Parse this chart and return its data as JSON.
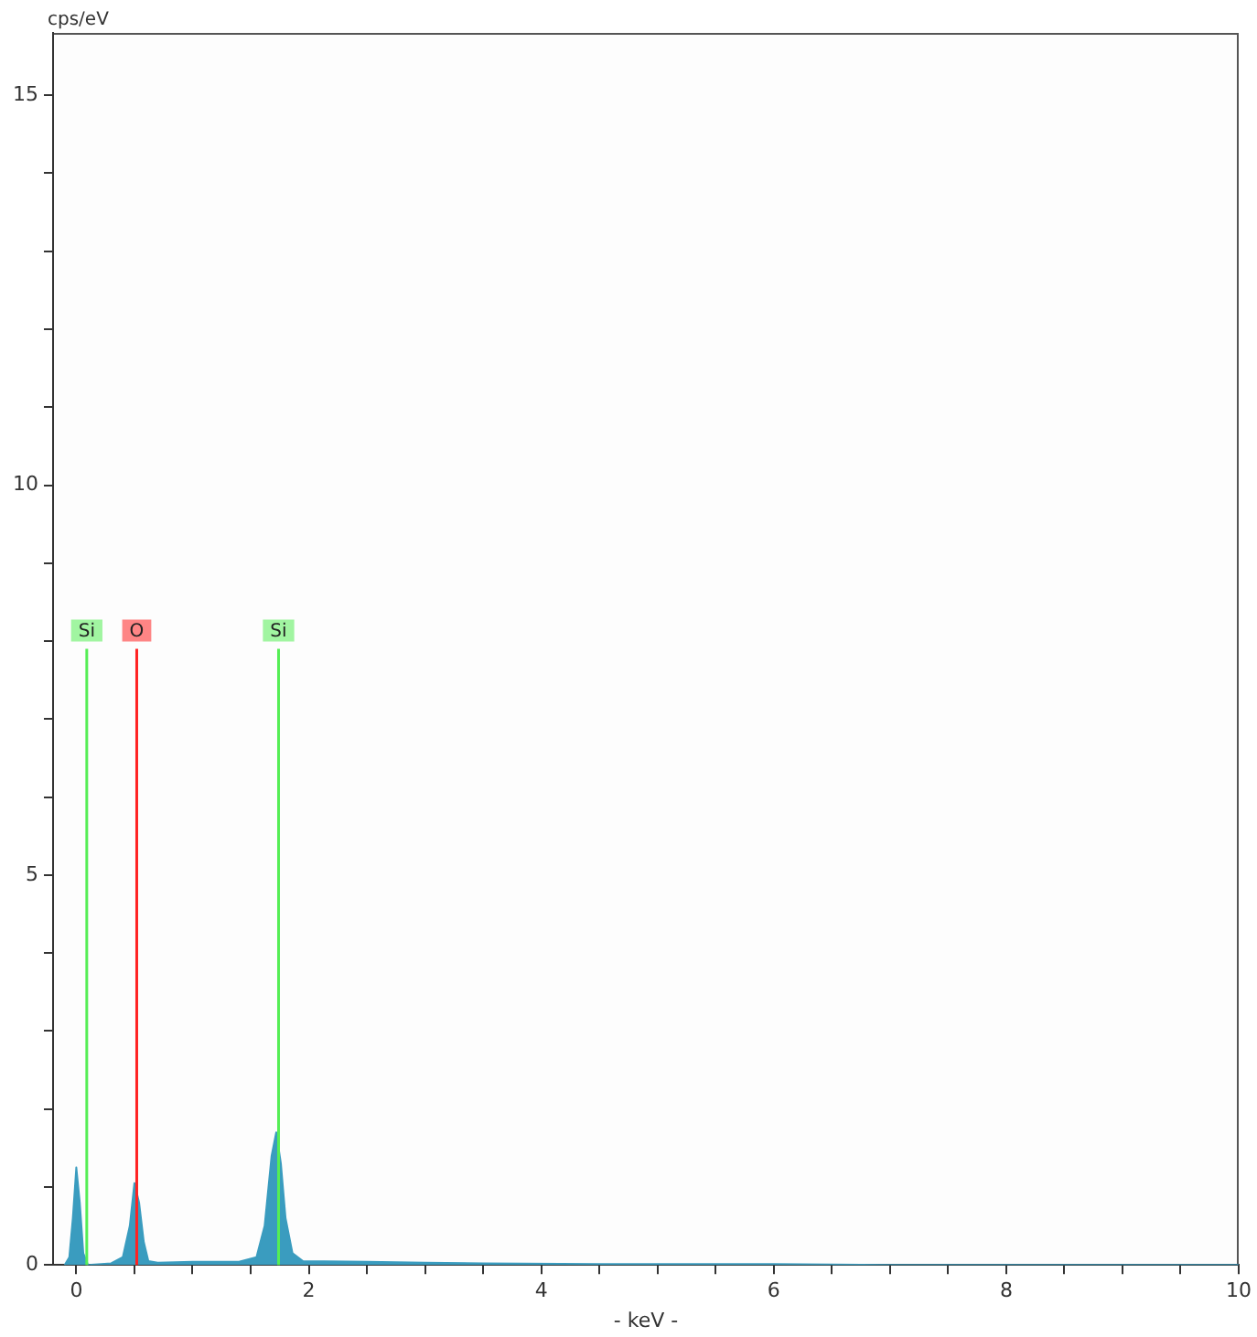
{
  "chart_data": {
    "type": "area",
    "xlabel": "- keV -",
    "ylabel": "cps/eV",
    "x": [
      -0.1,
      -0.06,
      -0.03,
      0,
      0.03,
      0.06,
      0.1,
      0.3,
      0.4,
      0.46,
      0.5,
      0.54,
      0.58,
      0.62,
      0.7,
      1.0,
      1.4,
      1.55,
      1.62,
      1.68,
      1.72,
      1.76,
      1.8,
      1.86,
      1.95,
      2.5,
      3.0,
      3.5,
      4.5,
      5,
      6,
      7,
      10
    ],
    "series": [
      {
        "color": "#3a9cbf",
        "values": [
          0,
          0.1,
          0.6,
          1.25,
          0.8,
          0.15,
          0,
          0.02,
          0.1,
          0.5,
          1.05,
          0.8,
          0.3,
          0.05,
          0.03,
          0.04,
          0.04,
          0.1,
          0.5,
          1.4,
          1.7,
          1.3,
          0.6,
          0.15,
          0.05,
          0.04,
          0.03,
          0.02,
          0.01,
          0.01,
          0.01,
          0,
          0
        ]
      }
    ],
    "xlim": [
      -0.2,
      10
    ],
    "xticks": [
      0,
      {
        "value": 0.5,
        "label": null
      },
      {
        "value": 1,
        "label": null
      },
      {
        "value": 1.5,
        "label": null
      },
      2,
      {
        "value": 2.5,
        "label": null
      },
      {
        "value": 3,
        "label": null
      },
      {
        "value": 3.5,
        "label": null
      },
      4,
      {
        "value": 4.5,
        "label": null
      },
      {
        "value": 5,
        "label": null
      },
      {
        "value": 5.5,
        "label": null
      },
      6,
      {
        "value": 6.5,
        "label": null
      },
      {
        "value": 7,
        "label": null
      },
      {
        "value": 7.5,
        "label": null
      },
      8,
      {
        "value": 8.5,
        "label": null
      },
      {
        "value": 9,
        "label": null
      },
      {
        "value": 9.5,
        "label": null
      },
      10
    ],
    "ylim": [
      0,
      15.8
    ],
    "yticks": [
      0,
      {
        "value": 1,
        "label": null
      },
      {
        "value": 2,
        "label": null
      },
      {
        "value": 3,
        "label": null
      },
      {
        "value": 4,
        "label": null
      },
      5,
      {
        "value": 6,
        "label": null
      },
      {
        "value": 7,
        "label": null
      },
      {
        "value": 8,
        "label": null
      },
      {
        "value": 9,
        "label": null
      },
      10,
      {
        "value": 11,
        "label": null
      },
      {
        "value": 12,
        "label": null
      },
      {
        "value": 13,
        "label": null
      },
      {
        "value": 14,
        "label": null
      },
      15
    ],
    "ref_lines": [
      {
        "axis": "x",
        "value": 0.09,
        "label": "Si",
        "color": "#55ee55"
      },
      {
        "axis": "x",
        "value": 0.52,
        "label": "O",
        "color": "#ff2222"
      },
      {
        "axis": "x",
        "value": 1.74,
        "label": "Si",
        "color": "#55ee55"
      }
    ],
    "grid": false,
    "legend": false
  }
}
